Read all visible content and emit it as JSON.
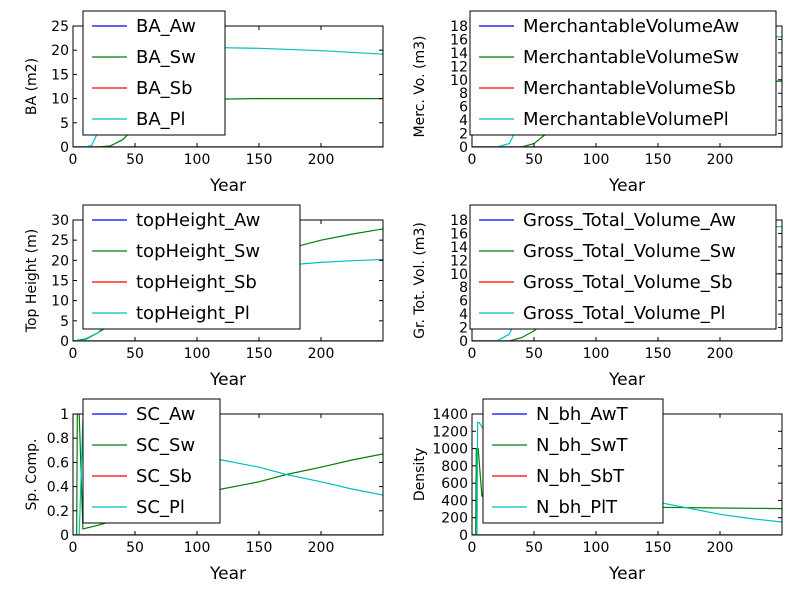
{
  "colors": {
    "series": [
      "#0000ff",
      "#008000",
      "#ff0000",
      "#00bfbf"
    ],
    "axes": "#000000",
    "background": "#ffffff"
  },
  "chart_data": [
    {
      "type": "line",
      "xlabel": "Year",
      "ylabel": "BA (m2)",
      "xlim": [
        0,
        250
      ],
      "ylim": [
        0,
        25
      ],
      "xticks": [
        0,
        50,
        100,
        150,
        200
      ],
      "yticks": [
        0,
        5,
        10,
        15,
        20,
        25
      ],
      "legend_position": "upper-left",
      "series": [
        {
          "name": "BA_Aw",
          "x": [
            0,
            250
          ],
          "y": [
            0,
            0
          ]
        },
        {
          "name": "BA_Sw",
          "x": [
            0,
            20,
            30,
            40,
            50,
            60,
            80,
            100,
            120,
            150,
            200,
            250
          ],
          "y": [
            0,
            0,
            0.2,
            1.5,
            4,
            6.5,
            8.8,
            9.6,
            9.9,
            10.0,
            10.0,
            10.0
          ]
        },
        {
          "name": "BA_Sb",
          "x": [
            0,
            250
          ],
          "y": [
            0,
            0
          ]
        },
        {
          "name": "BA_Pl",
          "x": [
            0,
            10,
            15,
            20,
            25,
            30,
            35,
            40,
            60,
            80,
            100,
            150,
            200,
            250
          ],
          "y": [
            0,
            0,
            0.3,
            3,
            9,
            14,
            17,
            18.5,
            20,
            20.6,
            20.6,
            20.4,
            19.9,
            19.2
          ]
        }
      ]
    },
    {
      "type": "line",
      "xlabel": "Year",
      "ylabel": "Merc. Vo. (m3)",
      "xlim": [
        0,
        250
      ],
      "ylim": [
        0,
        18
      ],
      "xticks": [
        0,
        50,
        100,
        150,
        200
      ],
      "yticks": [
        0,
        2,
        4,
        6,
        8,
        10,
        12,
        14,
        16,
        18
      ],
      "legend_position": "upper-left",
      "series": [
        {
          "name": "MerchantableVolumeAw",
          "x": [
            0,
            250
          ],
          "y": [
            0,
            0
          ]
        },
        {
          "name": "MerchantableVolumeSw",
          "x": [
            0,
            40,
            50,
            60,
            80,
            100,
            150,
            200,
            250
          ],
          "y": [
            0,
            0,
            0.5,
            2,
            5,
            7.5,
            9.2,
            9.6,
            9.8
          ]
        },
        {
          "name": "MerchantableVolumeSb",
          "x": [
            0,
            250
          ],
          "y": [
            0,
            0
          ]
        },
        {
          "name": "MerchantableVolumePl",
          "x": [
            0,
            20,
            30,
            40,
            50,
            60,
            80,
            100,
            150,
            200,
            240,
            250
          ],
          "y": [
            0,
            0,
            0.5,
            4,
            9,
            12.5,
            15,
            16,
            16.3,
            16.4,
            16.4,
            16.4
          ]
        }
      ]
    },
    {
      "type": "line",
      "xlabel": "Year",
      "ylabel": "Top Height (m)",
      "xlim": [
        0,
        250
      ],
      "ylim": [
        0,
        30
      ],
      "xticks": [
        0,
        50,
        100,
        150,
        200
      ],
      "yticks": [
        0,
        5,
        10,
        15,
        20,
        25,
        30
      ],
      "legend_position": "upper-left",
      "series": [
        {
          "name": "topHeight_Aw",
          "x": [
            0,
            250
          ],
          "y": [
            0,
            0
          ]
        },
        {
          "name": "topHeight_Sw",
          "x": [
            0,
            10,
            20,
            30,
            50,
            75,
            100,
            125,
            150,
            175,
            200,
            225,
            250
          ],
          "y": [
            0,
            0.5,
            2,
            4,
            8,
            12,
            15.5,
            18.5,
            21,
            23,
            25,
            26.5,
            27.8
          ]
        },
        {
          "name": "topHeight_Sb",
          "x": [
            0,
            250
          ],
          "y": [
            0,
            0
          ]
        },
        {
          "name": "topHeight_Pl",
          "x": [
            0,
            10,
            20,
            30,
            50,
            75,
            100,
            125,
            150,
            175,
            200,
            225,
            250
          ],
          "y": [
            0,
            0.3,
            2,
            5,
            9,
            12.5,
            15,
            16.8,
            18,
            18.9,
            19.5,
            19.9,
            20.2
          ]
        }
      ]
    },
    {
      "type": "line",
      "xlabel": "Year",
      "ylabel": "Gr. Tot. Vol. (m3)",
      "xlim": [
        0,
        250
      ],
      "ylim": [
        0,
        18
      ],
      "xticks": [
        0,
        50,
        100,
        150,
        200
      ],
      "yticks": [
        0,
        2,
        4,
        6,
        8,
        10,
        12,
        14,
        16,
        18
      ],
      "legend_position": "upper-left",
      "series": [
        {
          "name": "Gross_Total_Volume_Aw",
          "x": [
            0,
            250
          ],
          "y": [
            0,
            0
          ]
        },
        {
          "name": "Gross_Total_Volume_Sw",
          "x": [
            0,
            30,
            40,
            50,
            60,
            80,
            100,
            150,
            200,
            250
          ],
          "y": [
            0,
            0,
            0.5,
            1.5,
            3,
            6,
            8,
            9.5,
            10,
            10
          ]
        },
        {
          "name": "Gross_Total_Volume_Sb",
          "x": [
            0,
            250
          ],
          "y": [
            0,
            0
          ]
        },
        {
          "name": "Gross_Total_Volume_Pl",
          "x": [
            0,
            20,
            30,
            40,
            50,
            60,
            80,
            100,
            150,
            200,
            250
          ],
          "y": [
            0,
            0,
            1,
            5,
            10,
            13,
            15.5,
            16.5,
            17,
            17,
            17
          ]
        }
      ]
    },
    {
      "type": "line",
      "xlabel": "Year",
      "ylabel": "Sp. Comp.",
      "xlim": [
        0,
        250
      ],
      "ylim": [
        0,
        1.0
      ],
      "xticks": [
        0,
        50,
        100,
        150,
        200
      ],
      "yticks": [
        0.0,
        0.2,
        0.4,
        0.6,
        0.8,
        1.0
      ],
      "legend_position": "upper-left",
      "series": [
        {
          "name": "SC_Aw",
          "x": [
            0,
            250
          ],
          "y": [
            0,
            0
          ]
        },
        {
          "name": "SC_Sw",
          "x": [
            0,
            3,
            3.5,
            5,
            8,
            20,
            50,
            80,
            100,
            120,
            150,
            172,
            200,
            225,
            250
          ],
          "y": [
            0,
            0,
            1.0,
            1.0,
            0.05,
            0.08,
            0.17,
            0.27,
            0.33,
            0.38,
            0.44,
            0.5,
            0.56,
            0.62,
            0.67
          ]
        },
        {
          "name": "SC_Sb",
          "x": [
            0,
            250
          ],
          "y": [
            0,
            0
          ]
        },
        {
          "name": "SC_Pl",
          "x": [
            0,
            3,
            3.5,
            5,
            8,
            20,
            50,
            80,
            100,
            120,
            150,
            172,
            200,
            225,
            250
          ],
          "y": [
            0,
            0,
            0,
            0,
            0.95,
            0.92,
            0.83,
            0.73,
            0.67,
            0.62,
            0.56,
            0.5,
            0.44,
            0.38,
            0.33
          ]
        }
      ]
    },
    {
      "type": "line",
      "xlabel": "Year",
      "ylabel": "Density",
      "xlim": [
        0,
        250
      ],
      "ylim": [
        0,
        1400
      ],
      "xticks": [
        0,
        50,
        100,
        150,
        200
      ],
      "yticks": [
        0,
        200,
        400,
        600,
        800,
        1000,
        1200,
        1400
      ],
      "legend_position": "upper-left",
      "series": [
        {
          "name": "N_bh_AwT",
          "x": [
            0,
            250
          ],
          "y": [
            0,
            0
          ]
        },
        {
          "name": "N_bh_SwT",
          "x": [
            0,
            3,
            3.5,
            5,
            8,
            50,
            100,
            150,
            200,
            250
          ],
          "y": [
            0,
            0,
            1000,
            1000,
            450,
            380,
            340,
            320,
            312,
            305
          ]
        },
        {
          "name": "N_bh_SbT",
          "x": [
            0,
            250
          ],
          "y": [
            0,
            0
          ]
        },
        {
          "name": "N_bh_PlT",
          "x": [
            0,
            4,
            4.5,
            6,
            8,
            50,
            100,
            150,
            200,
            225,
            250
          ],
          "y": [
            0,
            0,
            1300,
            1300,
            1250,
            900,
            600,
            380,
            240,
            190,
            150
          ]
        }
      ]
    }
  ]
}
